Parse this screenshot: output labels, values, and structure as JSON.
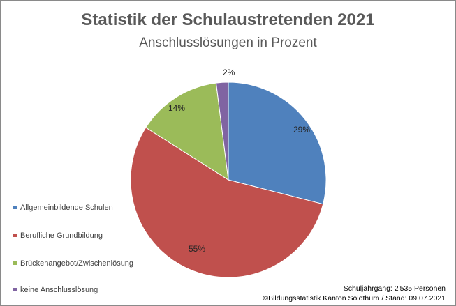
{
  "title": "Statistik der Schulaustretenden 2021",
  "subtitle": "Anschlusslösungen in Prozent",
  "chart_data": {
    "type": "pie",
    "title": "Statistik der Schulaustretenden 2021",
    "subtitle": "Anschlusslösungen in Prozent",
    "categories": [
      "Allgemeinbildende Schulen",
      "Berufliche Grundbildung",
      "Brückenangebot/Zwischenlösung",
      "keine Anschlusslösung"
    ],
    "values": [
      29,
      55,
      14,
      2
    ],
    "data_labels": [
      "29%",
      "55%",
      "14%",
      "2%"
    ],
    "colors": [
      "#4f81bd",
      "#c0504d",
      "#9bbb59",
      "#8064a2"
    ],
    "legend_position": "left-bottom"
  },
  "legend": [
    {
      "label": "Allgemeinbildende Schulen",
      "color": "#4f81bd"
    },
    {
      "label": "Berufliche Grundbildung",
      "color": "#c0504d"
    },
    {
      "label": "Brückenangebot/Zwischenlösung",
      "color": "#9bbb59"
    },
    {
      "label": "keine Anschlusslösung",
      "color": "#8064a2"
    }
  ],
  "footer": {
    "line1": "Schuljahrgang: 2'535 Personen",
    "line2": "©Bildungsstatistik Kanton Solothurn / Stand: 09.07.2021"
  }
}
